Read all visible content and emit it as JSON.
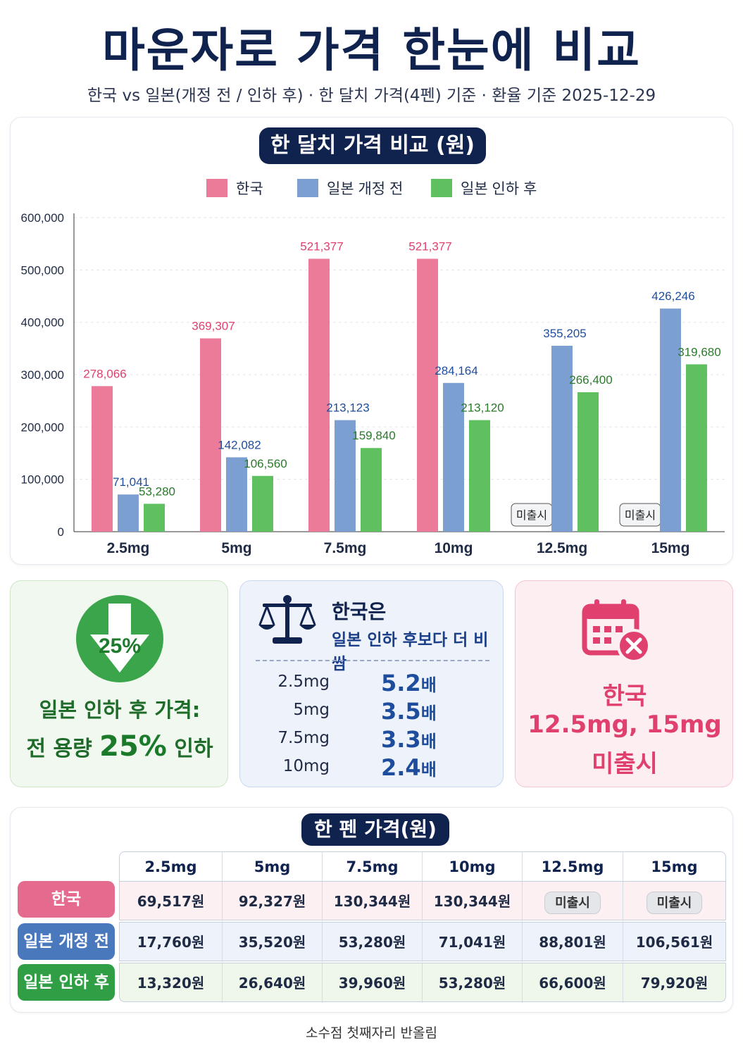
{
  "title": "마운자로 가격 한눈에 비교",
  "subtitle": "한국 vs 일본(개정 전 / 인하 후) · 한 달치 가격(4펜) 기준 · 환율 기준 2025-12-29",
  "chart_section_title": "한 달치 가격 비교 (원)",
  "chart_data": {
    "type": "bar",
    "title": "한 달치 가격 비교 (원)",
    "categories": [
      "2.5mg",
      "5mg",
      "7.5mg",
      "10mg",
      "12.5mg",
      "15mg"
    ],
    "series": [
      {
        "name": "한국",
        "color": "#ec7a99",
        "values": [
          278066,
          369307,
          521377,
          521377,
          null,
          null
        ],
        "labels": [
          "278,066",
          "369,307",
          "521,377",
          "521,377",
          "",
          ""
        ]
      },
      {
        "name": "일본 개정 전",
        "color": "#7b9fd0",
        "values": [
          71041,
          142082,
          213123,
          284164,
          355205,
          426246
        ],
        "labels": [
          "71,041",
          "142,082",
          "213,123",
          "284,164",
          "355,205",
          "426,246"
        ]
      },
      {
        "name": "일본 인하 후",
        "color": "#5ec05e",
        "values": [
          53280,
          106560,
          159840,
          213120,
          266400,
          319680
        ],
        "labels": [
          "53,280",
          "106,560",
          "159,840",
          "213,120",
          "266,400",
          "319,680"
        ]
      }
    ],
    "missing_label": "미출시",
    "ylim": [
      0,
      600000
    ],
    "yticks": [
      0,
      100000,
      200000,
      300000,
      400000,
      500000,
      600000
    ],
    "ytick_labels": [
      "0",
      "100,000",
      "200,000",
      "300,000",
      "400,000",
      "500,000",
      "600,000"
    ],
    "grid": true,
    "legend": "top-center",
    "label_colors": {
      "kr": "#e0406d",
      "jpb": "#1f4d9e",
      "jpa": "#2a7a2a"
    }
  },
  "card_green": {
    "badge": "25%",
    "line1": "일본 인하 후 가격:",
    "line2_prefix": "전 용량",
    "line2_big": "25%",
    "line2_suffix": "인하"
  },
  "card_blue": {
    "head1": "한국은",
    "head2": "일본 인하 후보다 더 비쌈",
    "rows": [
      {
        "dose": "2.5mg",
        "ratio": "5.2",
        "unit": "배"
      },
      {
        "dose": "5mg",
        "ratio": "3.5",
        "unit": "배"
      },
      {
        "dose": "7.5mg",
        "ratio": "3.3",
        "unit": "배"
      },
      {
        "dose": "10mg",
        "ratio": "2.4",
        "unit": "배"
      }
    ]
  },
  "card_pink": {
    "line1": "한국",
    "line2": "12.5mg, 15mg",
    "line3": "미출시"
  },
  "table": {
    "title": "한 펜 가격(원)",
    "columns": [
      "2.5mg",
      "5mg",
      "7.5mg",
      "10mg",
      "12.5mg",
      "15mg"
    ],
    "rows": [
      {
        "label": "한국",
        "cells": [
          "69,517원",
          "92,327원",
          "130,344원",
          "130,344원",
          "미출시",
          "미출시"
        ]
      },
      {
        "label": "일본 개정 전",
        "cells": [
          "17,760원",
          "35,520원",
          "53,280원",
          "71,041원",
          "88,801원",
          "106,561원"
        ]
      },
      {
        "label": "일본 인하 후",
        "cells": [
          "13,320원",
          "26,640원",
          "39,960원",
          "53,280원",
          "66,600원",
          "79,920원"
        ]
      }
    ]
  },
  "footnote": "소수점 첫째자리 반올림"
}
